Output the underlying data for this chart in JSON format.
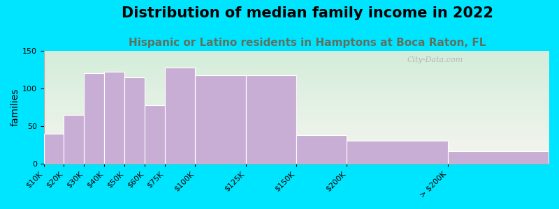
{
  "title": "Distribution of median family income in 2022",
  "subtitle": "Hispanic or Latino residents in Hamptons at Boca Raton, FL",
  "ylabel": "families",
  "categories": [
    "$10K",
    "$20K",
    "$30K",
    "$40K",
    "$50K",
    "$60K",
    "$75K",
    "$100K",
    "$125K",
    "$150K",
    "$200K",
    "> $200K"
  ],
  "bin_edges": [
    0,
    10,
    20,
    30,
    40,
    50,
    60,
    75,
    100,
    125,
    150,
    200,
    250
  ],
  "values": [
    40,
    65,
    120,
    122,
    115,
    78,
    128,
    118,
    118,
    38,
    30,
    17
  ],
  "bar_color": "#c8aed4",
  "bar_edge_color": "#ffffff",
  "ylim": [
    0,
    150
  ],
  "yticks": [
    0,
    50,
    100,
    150
  ],
  "bg_outer": "#00e5ff",
  "bg_inner_top": "#d4edda",
  "bg_inner_bottom": "#f5f5f0",
  "title_fontsize": 15,
  "subtitle_fontsize": 11,
  "subtitle_color": "#607060",
  "ylabel_fontsize": 10,
  "tick_fontsize": 8,
  "watermark": "City-Data.com"
}
